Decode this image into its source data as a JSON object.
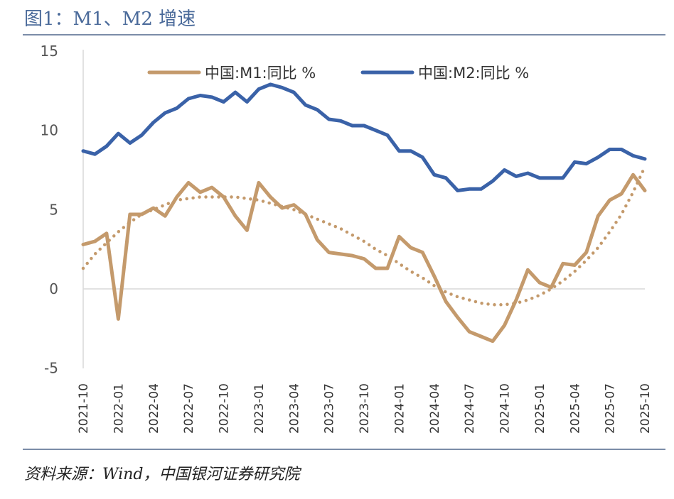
{
  "figure": {
    "title": "图1：M1、M2 增速",
    "source": "资料来源：Wind，中国银河证券研究院"
  },
  "chart_data": {
    "type": "line",
    "xlabel": "",
    "ylabel": "",
    "ylim": [
      -5,
      15
    ],
    "yticks": [
      -5,
      0,
      5,
      10,
      15
    ],
    "xtick_labels": [
      "2021-10",
      "2022-01",
      "2022-04",
      "2022-07",
      "2022-10",
      "2023-01",
      "2023-04",
      "2023-07",
      "2023-10",
      "2024-01",
      "2024-04",
      "2024-07",
      "2024-10",
      "2025-01",
      "2025-04",
      "2025-07",
      "2025-10"
    ],
    "x": [
      "2021-10",
      "2021-11",
      "2021-12",
      "2022-01",
      "2022-02",
      "2022-03",
      "2022-04",
      "2022-05",
      "2022-06",
      "2022-07",
      "2022-08",
      "2022-09",
      "2022-10",
      "2022-11",
      "2022-12",
      "2023-01",
      "2023-02",
      "2023-03",
      "2023-04",
      "2023-05",
      "2023-06",
      "2023-07",
      "2023-08",
      "2023-09",
      "2023-10",
      "2023-11",
      "2023-12",
      "2024-01",
      "2024-02",
      "2024-03",
      "2024-04",
      "2024-05",
      "2024-06",
      "2024-07",
      "2024-08",
      "2024-09",
      "2024-10",
      "2024-11",
      "2024-12",
      "2025-01",
      "2025-02",
      "2025-03",
      "2025-04",
      "2025-05",
      "2025-06",
      "2025-07",
      "2025-08",
      "2025-09",
      "2025-10"
    ],
    "legend_position": "top",
    "grid": false,
    "series": [
      {
        "name": "中国:M1:同比 %",
        "color": "#c49a6c",
        "style": "solid",
        "values": [
          2.8,
          3.0,
          3.5,
          -1.9,
          4.7,
          4.7,
          5.1,
          4.6,
          5.8,
          6.7,
          6.1,
          6.4,
          5.8,
          4.6,
          3.7,
          6.7,
          5.8,
          5.1,
          5.3,
          4.7,
          3.1,
          2.3,
          2.2,
          2.1,
          1.9,
          1.3,
          1.3,
          3.3,
          2.6,
          2.3,
          0.8,
          -0.8,
          -1.8,
          -2.7,
          -3.0,
          -3.3,
          -2.3,
          -0.7,
          1.2,
          0.4,
          0.1,
          1.6,
          1.5,
          2.3,
          4.6,
          5.6,
          6.0,
          7.2,
          6.2
        ]
      },
      {
        "name": "中国:M2:同比 %",
        "color": "#3a62a8",
        "style": "solid",
        "values": [
          8.7,
          8.5,
          9.0,
          9.8,
          9.2,
          9.7,
          10.5,
          11.1,
          11.4,
          12.0,
          12.2,
          12.1,
          11.8,
          12.4,
          11.8,
          12.6,
          12.9,
          12.7,
          12.4,
          11.6,
          11.3,
          10.7,
          10.6,
          10.3,
          10.3,
          10.0,
          9.7,
          8.7,
          8.7,
          8.3,
          7.2,
          7.0,
          6.2,
          6.3,
          6.3,
          6.8,
          7.5,
          7.1,
          7.3,
          7.0,
          7.0,
          7.0,
          8.0,
          7.9,
          8.3,
          8.8,
          8.8,
          8.4,
          8.2
        ]
      },
      {
        "name": "",
        "color": "#c49a6c",
        "style": "dotted",
        "values": [
          1.3,
          2.2,
          2.9,
          3.6,
          4.2,
          4.7,
          5.0,
          5.3,
          5.6,
          5.7,
          5.8,
          5.8,
          5.8,
          5.8,
          5.7,
          5.6,
          5.4,
          5.2,
          5.0,
          4.7,
          4.4,
          4.1,
          3.8,
          3.4,
          3.0,
          2.5,
          2.1,
          1.6,
          1.1,
          0.7,
          0.2,
          -0.2,
          -0.5,
          -0.7,
          -0.9,
          -1.0,
          -1.0,
          -0.9,
          -0.7,
          -0.4,
          0.0,
          0.5,
          1.1,
          1.8,
          2.6,
          3.6,
          4.7,
          6.1,
          7.7
        ]
      }
    ]
  }
}
